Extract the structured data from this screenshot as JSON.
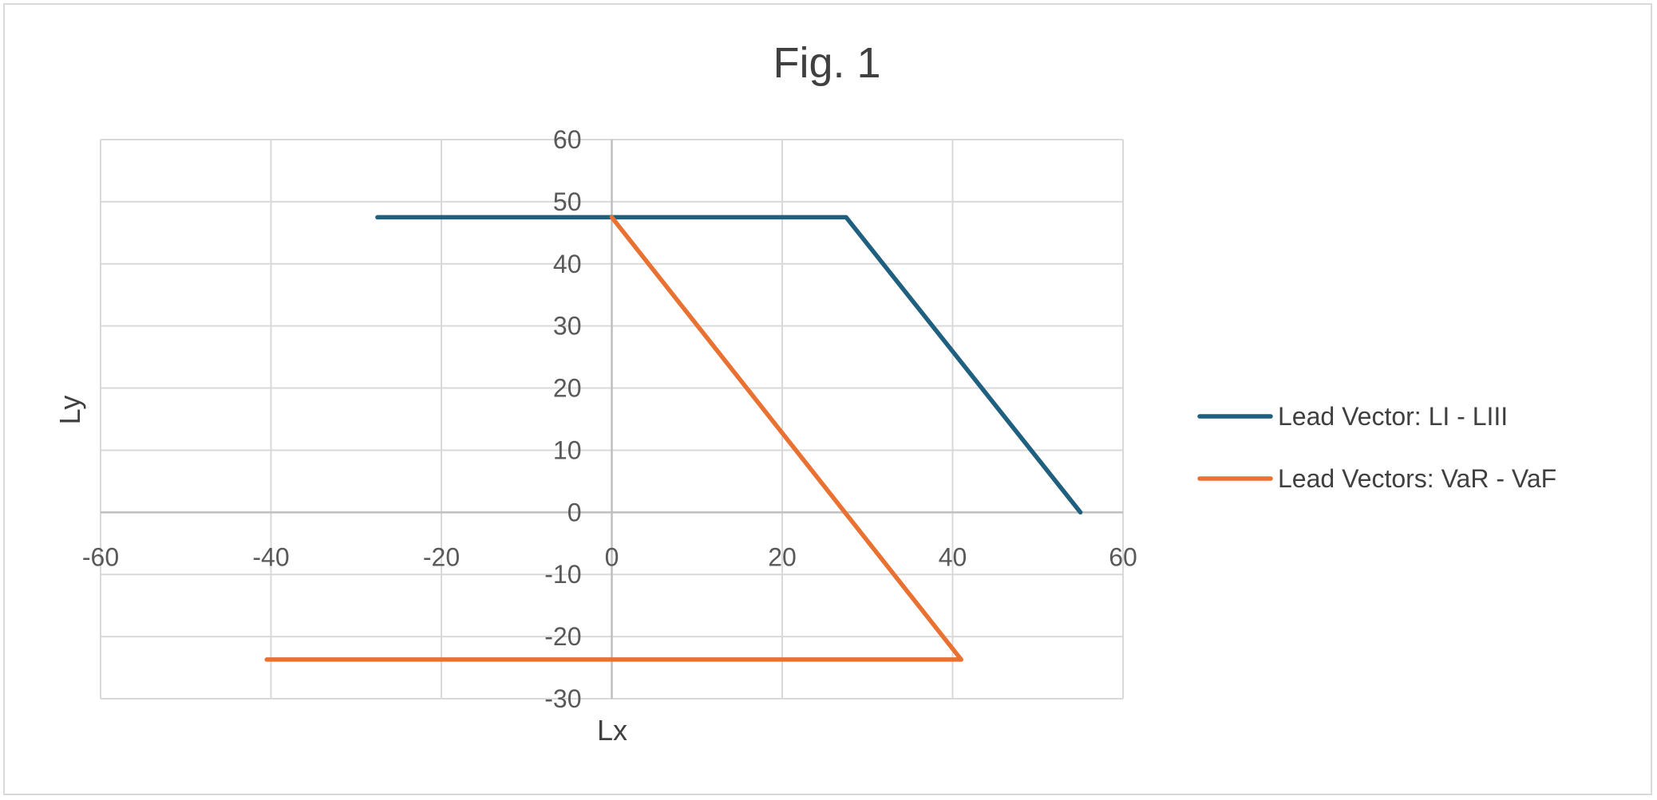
{
  "chart_data": {
    "type": "scatter",
    "title": "Fig. 1",
    "xlabel": "Lx",
    "ylabel": "Ly",
    "xlim": [
      -60,
      60
    ],
    "ylim": [
      -30,
      60
    ],
    "x_ticks": [
      -60,
      -40,
      -20,
      0,
      20,
      40,
      60
    ],
    "y_ticks": [
      -30,
      -20,
      -10,
      0,
      10,
      20,
      30,
      40,
      50,
      60
    ],
    "grid": true,
    "legend_position": "right",
    "series": [
      {
        "name": "Lead Vector: LI - LIII",
        "color": "#1f5f7f",
        "points": [
          [
            -27.5,
            47.5
          ],
          [
            27.5,
            47.5
          ],
          [
            55,
            0
          ]
        ]
      },
      {
        "name": "Lead Vectors: VaR - VaF",
        "color": "#e97132",
        "points": [
          [
            -40.5,
            -23.7
          ],
          [
            41,
            -23.7
          ],
          [
            0,
            47.5
          ]
        ]
      }
    ]
  }
}
